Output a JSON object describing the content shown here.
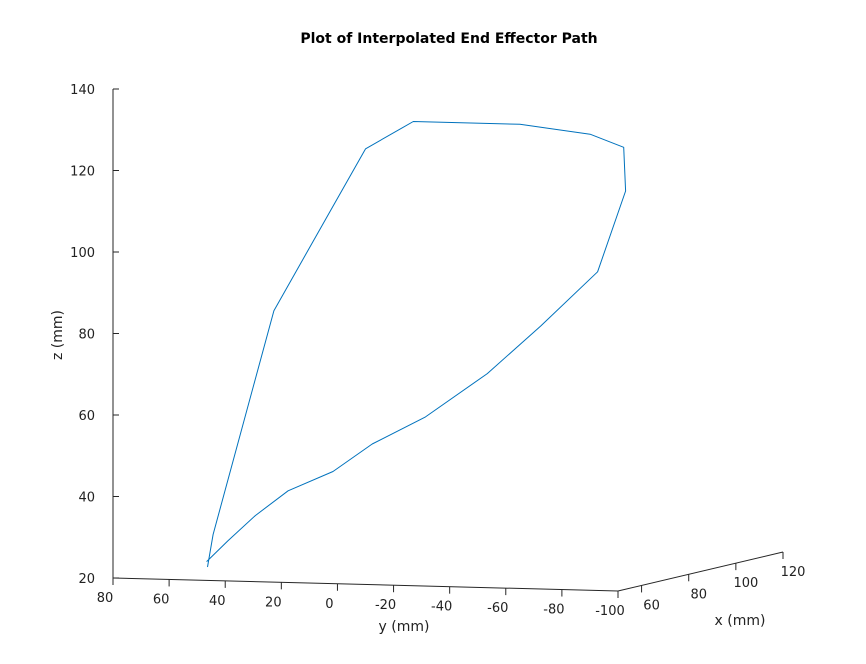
{
  "chart_data": {
    "type": "line",
    "projection": "3d",
    "title": "Plot of Interpolated End Effector Path",
    "xlabel": "x (mm)",
    "ylabel": "y (mm)",
    "zlabel": "z (mm)",
    "xlim": [
      50,
      120
    ],
    "ylim": [
      -100,
      80
    ],
    "zlim": [
      20,
      140
    ],
    "x_ticks": [
      "60",
      "80",
      "100",
      "120"
    ],
    "y_ticks": [
      "80",
      "60",
      "40",
      "20",
      "0",
      "-20",
      "-40",
      "-60",
      "-80",
      "-100"
    ],
    "z_ticks": [
      "20",
      "40",
      "60",
      "80",
      "100",
      "120",
      "140"
    ],
    "grid": false,
    "line_color": "#0072bd",
    "series": [
      {
        "points": [
          {
            "x": 52,
            "y": 48,
            "z": 23
          },
          {
            "x": 52,
            "y": 46,
            "z": 31
          },
          {
            "x": 54,
            "y": 26,
            "z": 86
          },
          {
            "x": 56,
            "y": 8,
            "z": 110
          },
          {
            "x": 56,
            "y": -5,
            "z": 126
          },
          {
            "x": 56,
            "y": -22,
            "z": 133
          },
          {
            "x": 56,
            "y": -60,
            "z": 133
          },
          {
            "x": 56,
            "y": -85,
            "z": 131
          },
          {
            "x": 56,
            "y": -97,
            "z": 128
          },
          {
            "x": 58,
            "y": -96,
            "z": 117
          },
          {
            "x": 58,
            "y": -86,
            "z": 97
          },
          {
            "x": 60,
            "y": -64,
            "z": 83
          },
          {
            "x": 60,
            "y": -45,
            "z": 71
          },
          {
            "x": 60,
            "y": -23,
            "z": 60
          },
          {
            "x": 60,
            "y": -4,
            "z": 53
          },
          {
            "x": 60,
            "y": 10,
            "z": 46
          },
          {
            "x": 60,
            "y": 26,
            "z": 41
          },
          {
            "x": 58,
            "y": 36,
            "z": 35
          },
          {
            "x": 56,
            "y": 44,
            "z": 29
          },
          {
            "x": 54,
            "y": 50,
            "z": 24
          }
        ]
      }
    ]
  }
}
